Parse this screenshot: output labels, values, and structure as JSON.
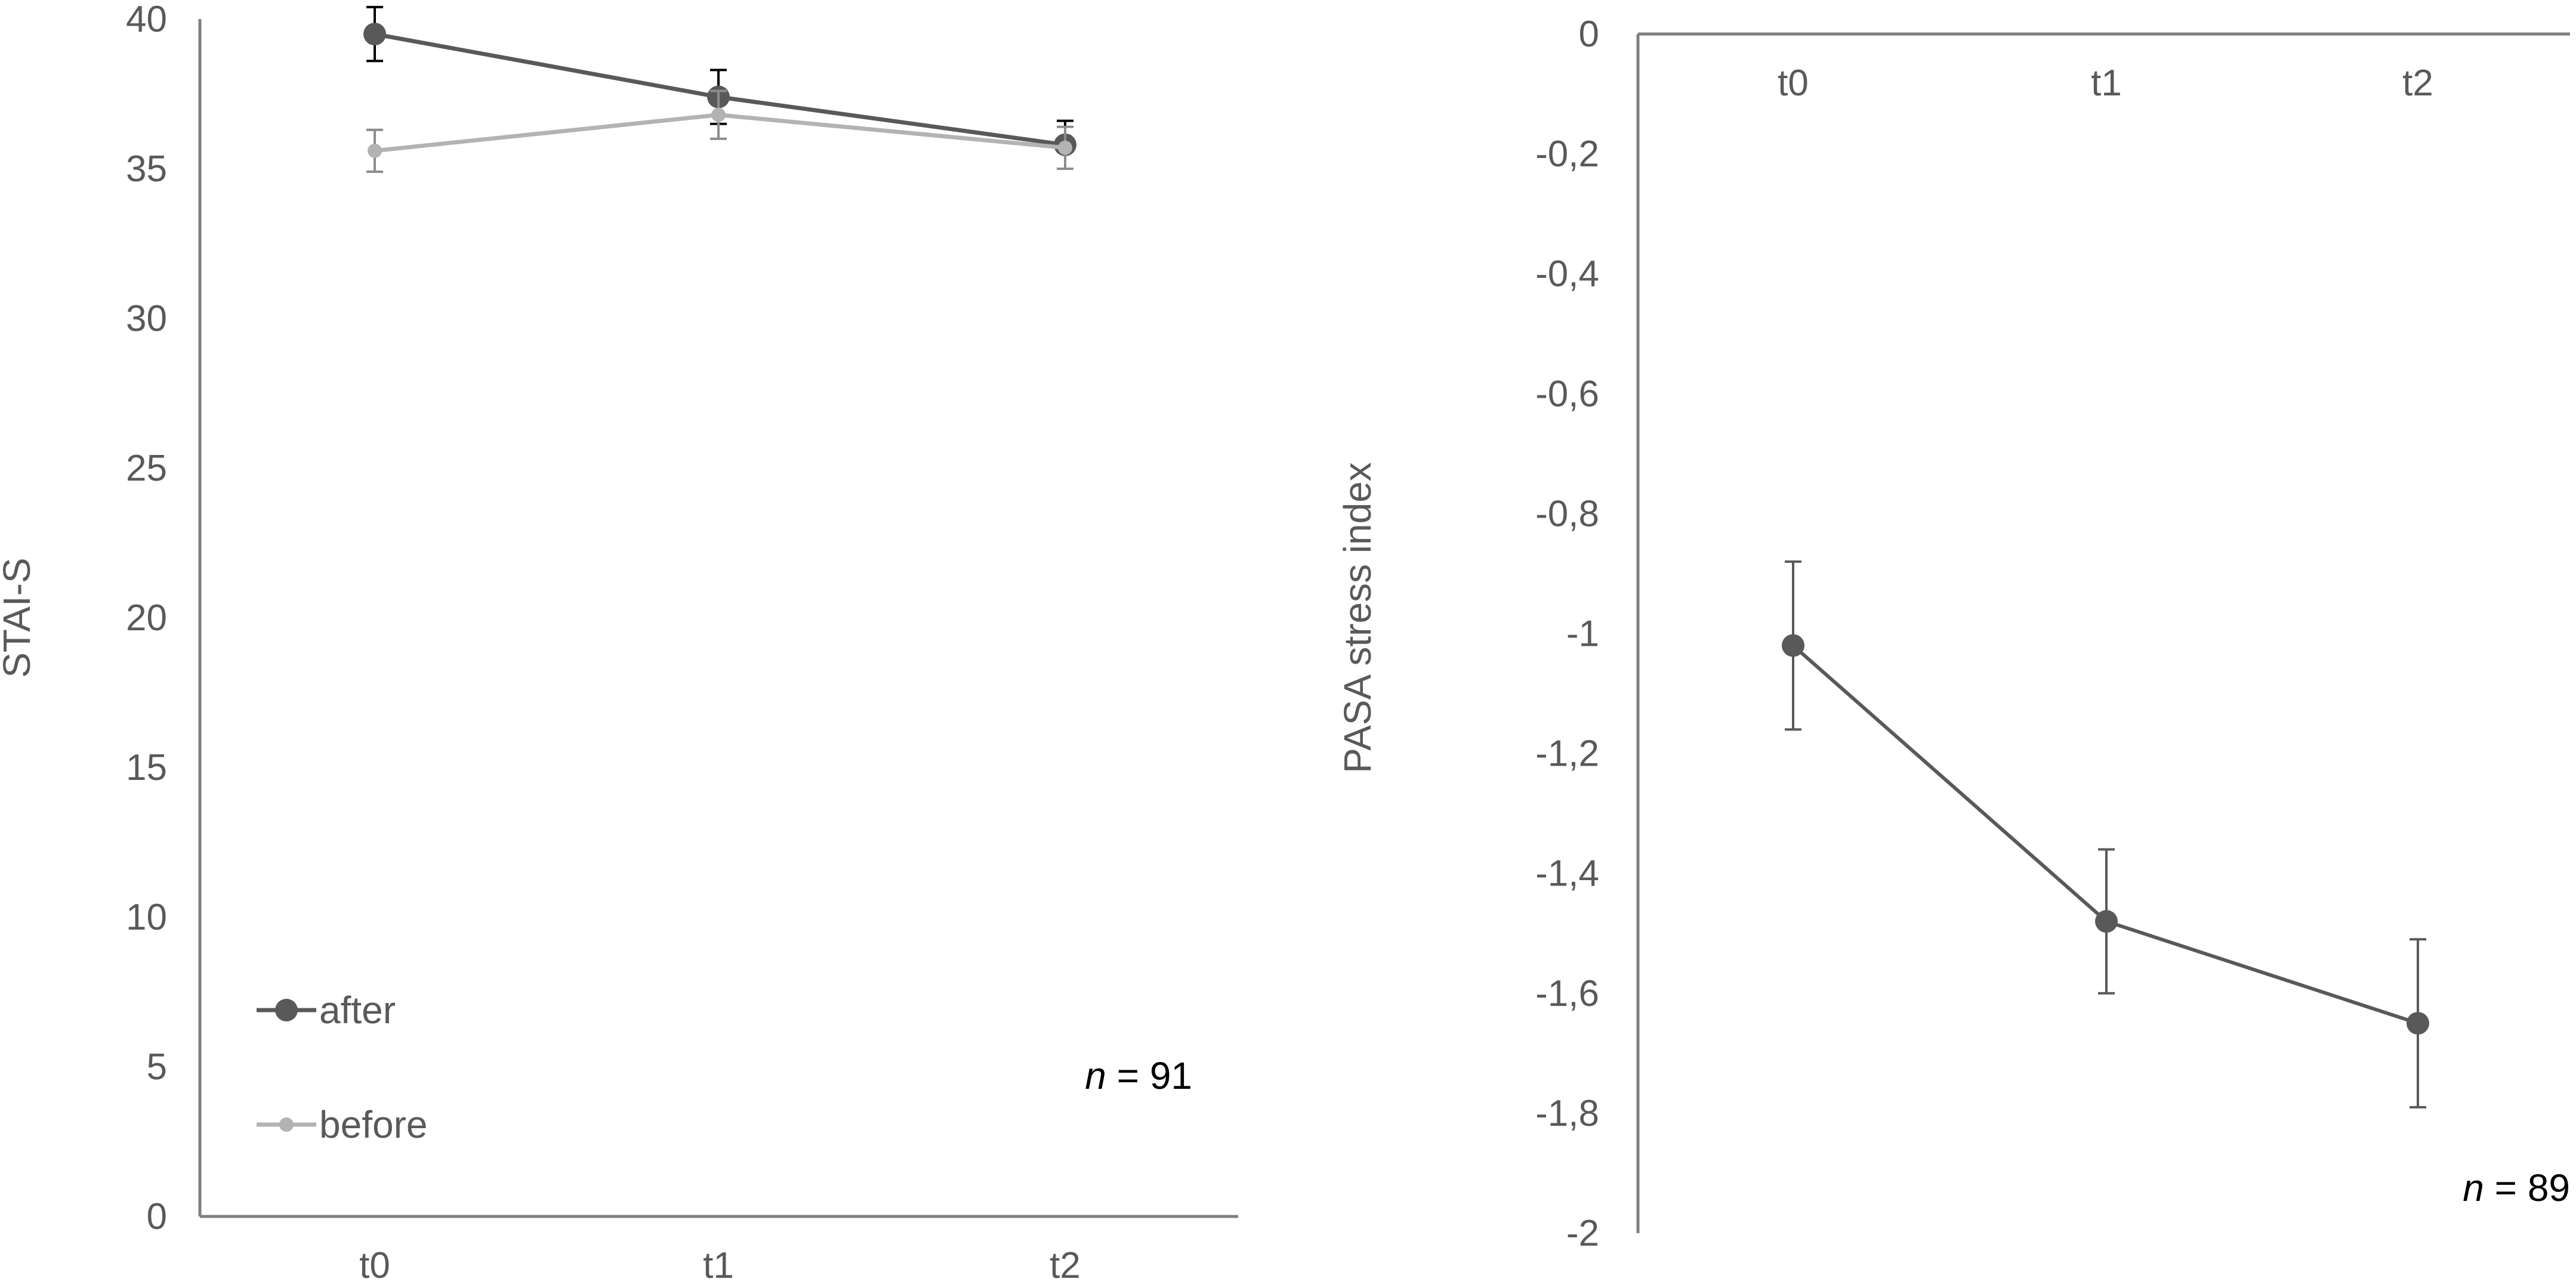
{
  "chart_data": [
    {
      "type": "line",
      "categories": [
        "t0",
        "t1",
        "t2"
      ],
      "ylabel": "STAI-S",
      "xlabel": "",
      "ylim": [
        0,
        40
      ],
      "yticks": [
        "0",
        "5",
        "10",
        "15",
        "20",
        "25",
        "30",
        "35",
        "40"
      ],
      "grid": false,
      "legend_position": "bottom-left",
      "series": [
        {
          "name": "after",
          "values": [
            39.5,
            37.4,
            35.8
          ],
          "error": [
            0.9,
            0.9,
            0.8
          ],
          "color": "#595959"
        },
        {
          "name": "before",
          "values": [
            35.6,
            36.8,
            35.7
          ],
          "error": [
            0.7,
            0.8,
            0.7
          ],
          "color": "#b3b3b3"
        }
      ],
      "annotation": {
        "italic": "n",
        "text": " = 91"
      }
    },
    {
      "type": "line",
      "categories": [
        "t0",
        "t1",
        "t2"
      ],
      "ylabel": "PASA stress index",
      "xlabel": "",
      "ylim": [
        -2,
        0
      ],
      "yticks": [
        "0",
        "-0,2",
        "-0,4",
        "-0,6",
        "-0,8",
        "-1",
        "-1,2",
        "-1,4",
        "-1,6",
        "-1,8",
        "-2"
      ],
      "grid": false,
      "x_axis_position": "top",
      "series": [
        {
          "values": [
            -1.02,
            -1.48,
            -1.65
          ],
          "error": [
            0.14,
            0.12,
            0.14
          ],
          "color": "#595959"
        }
      ],
      "annotation": {
        "italic": "n",
        "text": " = 89"
      }
    }
  ]
}
